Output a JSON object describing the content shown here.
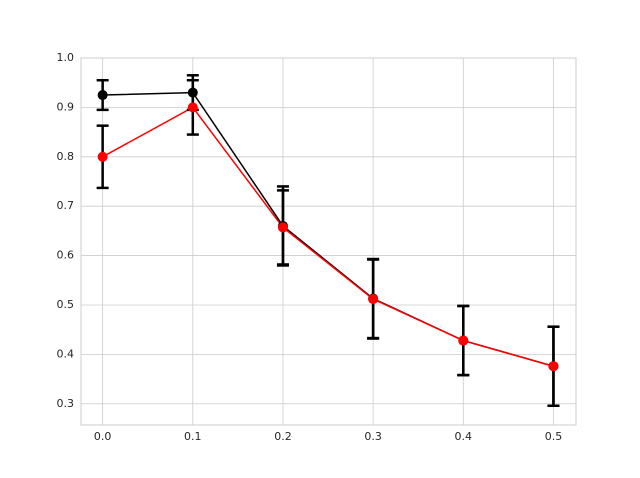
{
  "chart_data": {
    "type": "errorbar_line",
    "x": [
      0,
      0.1,
      0.2,
      0.3,
      0.4,
      0.5
    ],
    "series": [
      {
        "color": "#000000",
        "values": [
          0.925,
          0.93,
          0.66,
          0.513,
          0.428,
          0.376
        ],
        "errors": [
          0.03,
          0.035,
          0.08,
          0.08,
          0.07,
          0.08
        ]
      },
      {
        "color": "#ff0000",
        "values": [
          0.8,
          0.9,
          0.657,
          0.512,
          0.428,
          0.376
        ],
        "errors": [
          0.063,
          0.055,
          0.075,
          0.08,
          0.07,
          0.08
        ]
      }
    ],
    "ecolor": "#000000",
    "xlim": [
      -0.024,
      0.525
    ],
    "ylim": [
      0.257,
      1.0
    ],
    "xticks": [
      {
        "value": 0,
        "label": "0.0"
      },
      0.1,
      0.2,
      0.3,
      0.4,
      0.5
    ],
    "yticks": [
      0.3,
      0.4,
      0.5,
      0.6,
      0.7,
      0.8,
      0.9,
      {
        "value": 1,
        "label": "1.0"
      }
    ],
    "grid": true
  }
}
